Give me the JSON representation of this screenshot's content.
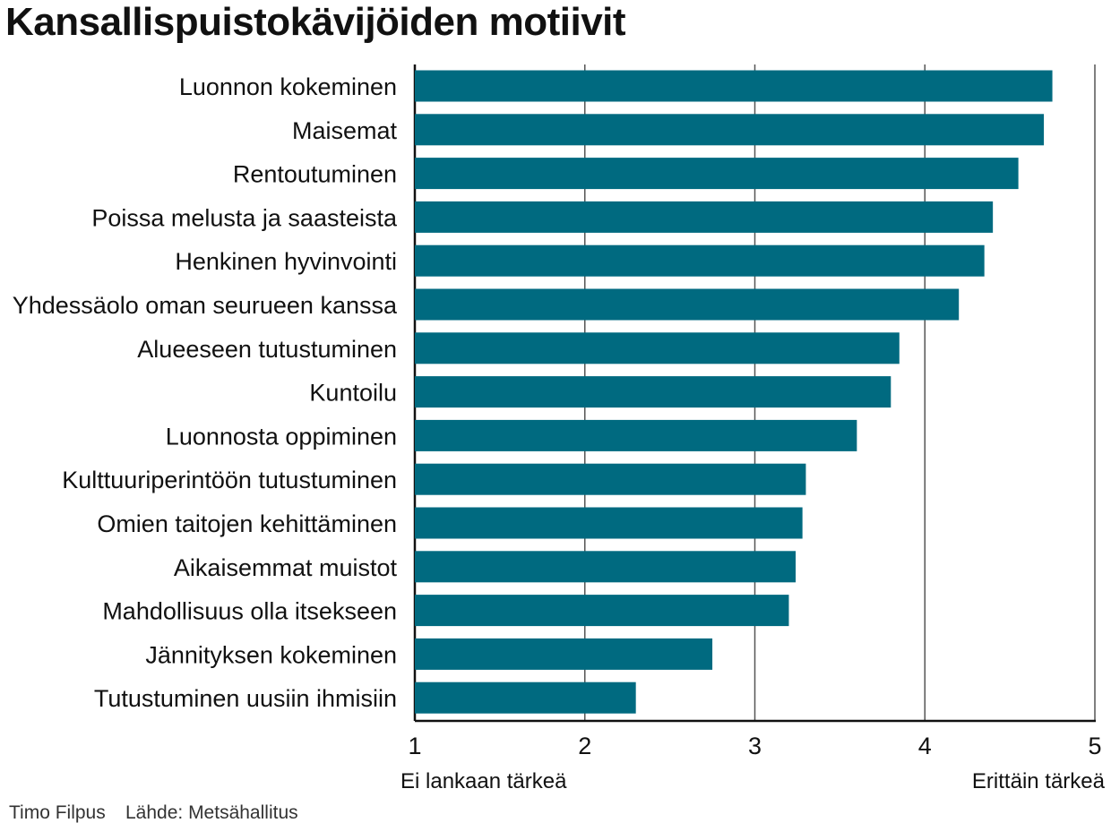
{
  "chart_data": {
    "type": "bar",
    "orientation": "horizontal",
    "title": "Kansallispuistokävijöiden motiivit",
    "categories": [
      "Luonnon kokeminen",
      "Maisemat",
      "Rentoutuminen",
      "Poissa melusta ja saasteista",
      "Henkinen hyvinvointi",
      "Yhdessäolo oman seurueen kanssa",
      "Alueeseen tutustuminen",
      "Kuntoilu",
      "Luonnosta oppiminen",
      "Kulttuuriperintöön tutustuminen",
      "Omien taitojen kehittäminen",
      "Aikaisemmat muistot",
      "Mahdollisuus olla itsekseen",
      "Jännityksen kokeminen",
      "Tutustuminen uusiin ihmisiin"
    ],
    "values": [
      4.75,
      4.7,
      4.55,
      4.4,
      4.35,
      4.2,
      3.85,
      3.8,
      3.6,
      3.3,
      3.28,
      3.24,
      3.2,
      2.75,
      2.3
    ],
    "xlim": [
      1,
      5
    ],
    "x_ticks": [
      "1",
      "2",
      "3",
      "4",
      "5"
    ],
    "scale_min_label": "Ei lankaan tärkeä",
    "scale_max_label": "Erittäin tärkeä",
    "grid": true,
    "bar_color": "#006a80",
    "grid_color": "#555555"
  },
  "credits": {
    "author": "Timo Filpus",
    "source": "Lähde: Metsähallitus"
  }
}
